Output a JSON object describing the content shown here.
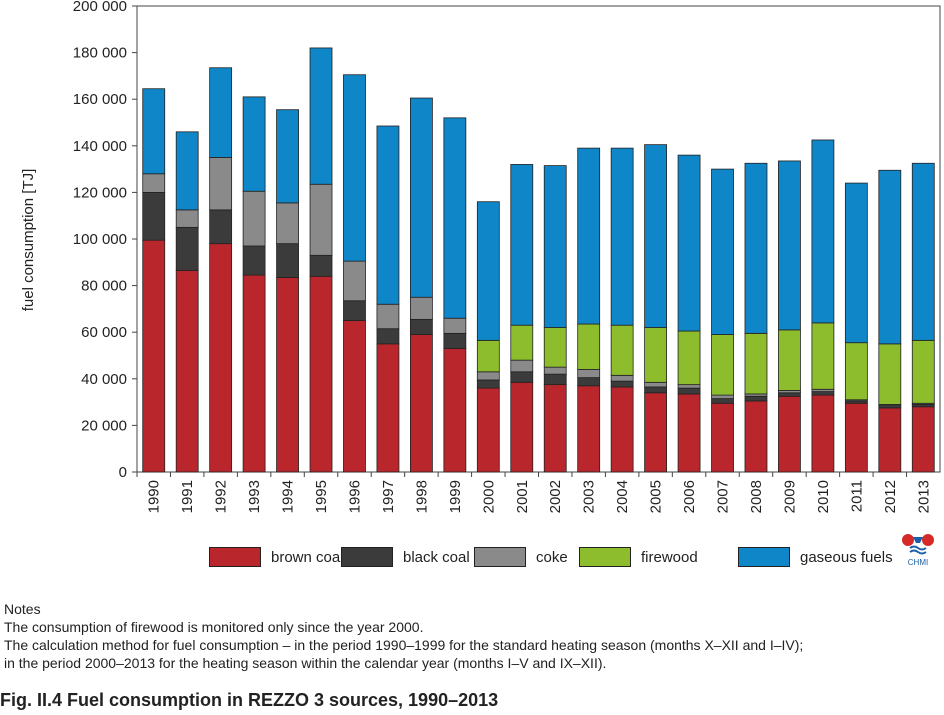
{
  "chart_data": {
    "type": "bar",
    "stacked": true,
    "ylabel": "fuel consumption [TJ]",
    "xlabel": "",
    "ylim": [
      0,
      200000
    ],
    "yticks": [
      0,
      20000,
      40000,
      60000,
      80000,
      100000,
      120000,
      140000,
      160000,
      180000,
      200000
    ],
    "ytick_labels": [
      "0",
      "20 000",
      "40 000",
      "60 000",
      "80 000",
      "100 000",
      "120 000",
      "140 000",
      "160 000",
      "180 000",
      "200 000"
    ],
    "grid": false,
    "legend_position": "bottom",
    "categories": [
      "1990",
      "1991",
      "1992",
      "1993",
      "1994",
      "1995",
      "1996",
      "1997",
      "1998",
      "1999",
      "2000",
      "2001",
      "2002",
      "2003",
      "2004",
      "2005",
      "2006",
      "2007",
      "2008",
      "2009",
      "2010",
      "2011",
      "2012",
      "2013"
    ],
    "series": [
      {
        "name": "brown coal",
        "color": "#b9272c",
        "values": [
          99500,
          86500,
          98000,
          84500,
          83500,
          84000,
          65000,
          55000,
          59000,
          53000,
          36000,
          38500,
          37500,
          37000,
          36500,
          34000,
          33500,
          29500,
          30500,
          32500,
          33000,
          29500,
          27500,
          28000
        ]
      },
      {
        "name": "black coal",
        "color": "#3b3b3b",
        "values": [
          20500,
          18500,
          14500,
          12500,
          14500,
          9000,
          8500,
          6500,
          6500,
          6500,
          3500,
          4500,
          4500,
          3500,
          2500,
          2500,
          2500,
          2000,
          2000,
          1500,
          1500,
          1000,
          1000,
          1000
        ]
      },
      {
        "name": "coke",
        "color": "#8a8a8a",
        "values": [
          8000,
          7500,
          22500,
          23500,
          17500,
          30500,
          17000,
          10500,
          9500,
          6500,
          3500,
          5000,
          3000,
          3500,
          2500,
          2000,
          1500,
          1500,
          1000,
          1000,
          1000,
          500,
          500,
          500
        ]
      },
      {
        "name": "firewood",
        "color": "#8dbd2c",
        "values": [
          0,
          0,
          0,
          0,
          0,
          0,
          0,
          0,
          0,
          0,
          13500,
          15000,
          17000,
          19500,
          21500,
          23500,
          23000,
          26000,
          26000,
          26000,
          28500,
          24500,
          26000,
          27000
        ]
      },
      {
        "name": "gaseous fuels",
        "color": "#0f86c8",
        "values": [
          36500,
          33500,
          38500,
          40500,
          40000,
          58500,
          80000,
          76500,
          85500,
          86000,
          59500,
          69000,
          69500,
          75500,
          76000,
          78500,
          75500,
          71000,
          73000,
          72500,
          78500,
          68500,
          74500,
          76000
        ]
      }
    ]
  },
  "logo": {
    "label": "CHMI"
  },
  "notes": {
    "heading": "Notes",
    "line1": "The consumption of firewood is monitored only since the year 2000.",
    "line2": "The calculation method for fuel consumption – in the period 1990–1999 for the standard heating season (months X–XII and I–IV);",
    "line3": "in the period 2000–2013 for the heating season within the calendar year (months I–V and IX–XII)."
  },
  "caption": "Fig. II.4  Fuel consumption in REZZO 3 sources, 1990–2013"
}
